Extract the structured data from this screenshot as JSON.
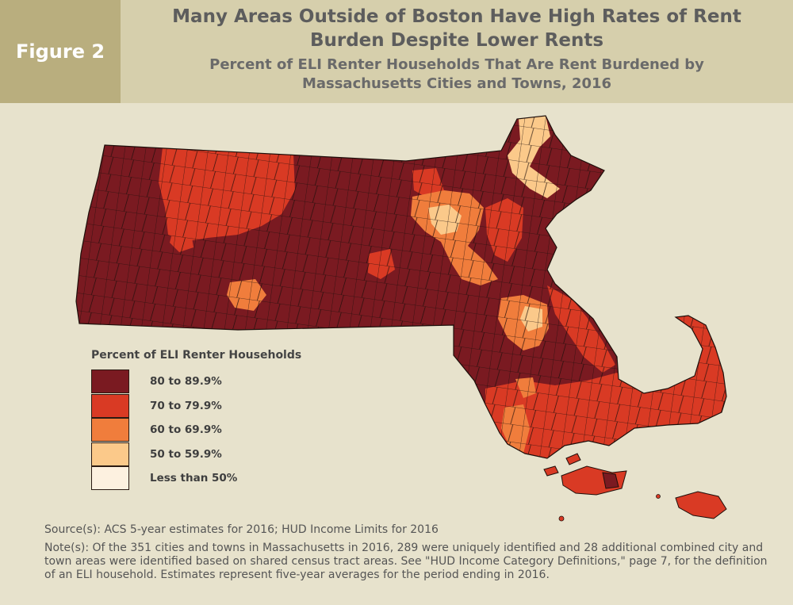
{
  "figure_label": "Figure 2",
  "title": "Many Areas Outside of Boston Have High Rates of Rent Burden Despite Lower Rents",
  "subtitle": "Percent of ELI Renter Households That Are Rent Burdened by Massachusetts Cities and Towns, 2016",
  "legend": {
    "title": "Percent of ELI Renter Households",
    "items": [
      {
        "label": "80 to 89.9%",
        "color": "#7a1a21"
      },
      {
        "label": "70 to 79.9%",
        "color": "#d93a24"
      },
      {
        "label": "60 to 69.9%",
        "color": "#f07d3c"
      },
      {
        "label": "50 to 59.9%",
        "color": "#fbc98a"
      },
      {
        "label": "Less than 50%",
        "color": "#fdf1e0"
      }
    ]
  },
  "source": "Source(s): ACS 5-year estimates for 2016; HUD Income Limits for 2016",
  "note": "Note(s): Of the 351 cities and towns in Massachusetts in 2016, 289 were uniquely identified and 28 additional combined city and town areas were identified based on shared census tract areas. See \"HUD Income Category Definitions,\" page 7, for the definition of an ELI household. Estimates represent five-year averages for the period ending in 2016.",
  "colors": {
    "header_bg": "#d6cfac",
    "figure_tab_bg": "#b9ae7e",
    "page_bg": "#e7e2cc",
    "town_border": "#1e0f0b"
  }
}
